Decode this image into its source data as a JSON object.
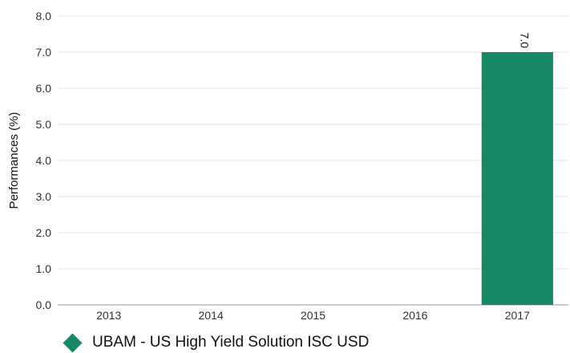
{
  "chart_data": {
    "type": "bar",
    "categories": [
      "2013",
      "2014",
      "2015",
      "2016",
      "2017"
    ],
    "series": [
      {
        "name": "UBAM - US High Yield Solution ISC USD",
        "values": [
          null,
          null,
          null,
          null,
          7.0
        ],
        "labels": [
          "",
          "",
          "",
          "",
          "7.0"
        ],
        "color": "#168865"
      }
    ],
    "ylabel": "Performances (%)",
    "ylim": [
      0,
      8
    ],
    "yticks": [
      "0.0",
      "1.0",
      "2.0",
      "3.0",
      "4.0",
      "5.0",
      "6.0",
      "7.0",
      "8.0"
    ],
    "grid": true,
    "legend_position": "bottom-left"
  },
  "legend": {
    "label": "UBAM - US High Yield Solution ISC USD",
    "color": "#168865",
    "marker": "diamond"
  }
}
